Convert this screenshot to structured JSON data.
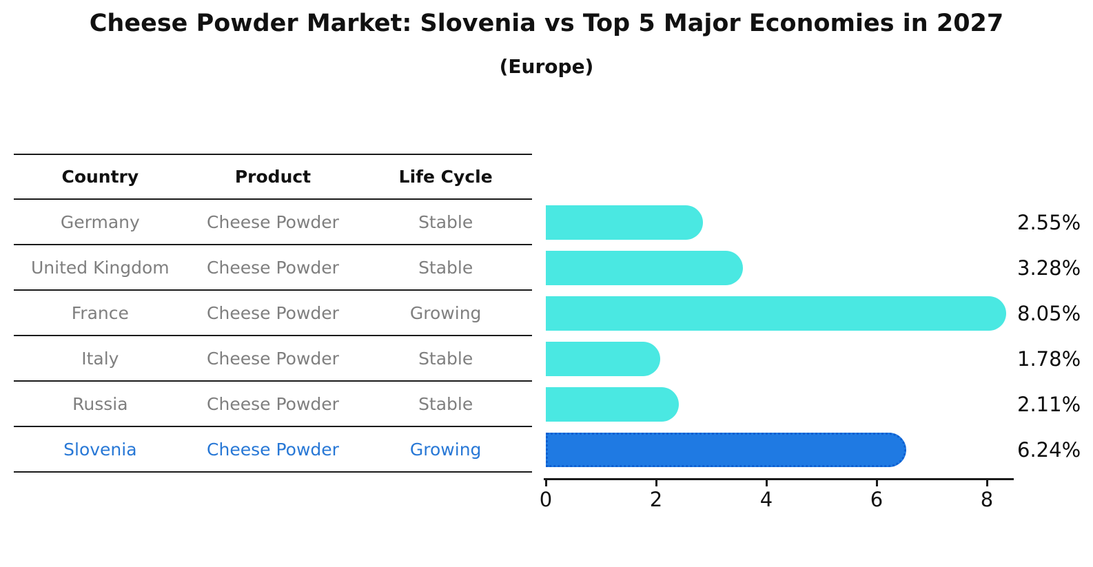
{
  "chart_data": {
    "type": "bar",
    "orientation": "horizontal",
    "title": "Cheese Powder Market: Slovenia vs Top 5 Major Economies in 2027",
    "subtitle": "(Europe)",
    "categories": [
      "Germany",
      "United Kingdom",
      "France",
      "Italy",
      "Russia",
      "Slovenia"
    ],
    "values": [
      2.55,
      3.28,
      8.05,
      1.78,
      2.11,
      6.24
    ],
    "value_labels": [
      "2.55%",
      "3.28%",
      "8.05%",
      "1.78%",
      "2.11%",
      "6.24%"
    ],
    "xlabel": "",
    "ylabel": "",
    "xlim": [
      0,
      8.5
    ],
    "xticks": [
      "0",
      "2",
      "4",
      "6",
      "8"
    ],
    "grid": false,
    "legend": "none",
    "highlight_index": 5
  },
  "table": {
    "headers": [
      "Country",
      "Product",
      "Life Cycle"
    ],
    "rows": [
      {
        "country": "Germany",
        "product": "Cheese Powder",
        "life_cycle": "Stable"
      },
      {
        "country": "United Kingdom",
        "product": "Cheese Powder",
        "life_cycle": "Stable"
      },
      {
        "country": "France",
        "product": "Cheese Powder",
        "life_cycle": "Growing"
      },
      {
        "country": "Italy",
        "product": "Cheese Powder",
        "life_cycle": "Stable"
      },
      {
        "country": "Russia",
        "product": "Cheese Powder",
        "life_cycle": "Stable"
      },
      {
        "country": "Slovenia",
        "product": "Cheese Powder",
        "life_cycle": "Growing"
      }
    ]
  },
  "colors": {
    "bar": "#4AE8E2",
    "highlight_bar": "#1F7AE3",
    "highlight_border": "#0E5FD0",
    "highlight_text": "#2878D6",
    "row_text": "#7F7F7F",
    "header_text": "#111111",
    "value_text": "#0D0D0D",
    "axis": "#1A1A1A",
    "background": "#FFFFFF"
  }
}
